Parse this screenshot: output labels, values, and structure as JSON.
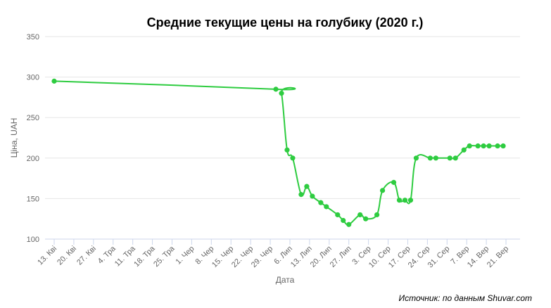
{
  "colors": {
    "series": "#2ecc40",
    "grid": "#e6e6e6",
    "text": "#666666"
  },
  "footer": {
    "source": "Источник: по данным Shuvar.com"
  },
  "chart_data": {
    "type": "line",
    "title": "Средние текущие цены на голубику (2020 г.)",
    "xlabel": "Дата",
    "ylabel": "Ціна, UAH",
    "ylim": [
      100,
      350
    ],
    "yticks": [
      100,
      150,
      200,
      250,
      300,
      350
    ],
    "grid": true,
    "legend": "none",
    "xlim": [
      "2020-04-13",
      "2020-09-24"
    ],
    "xtick_labels": [
      "13. Кві",
      "20. Кві",
      "27. Кві",
      "4. Тра",
      "11. Тра",
      "18. Тра",
      "25. Тра",
      "1. Чер",
      "8. Чер",
      "15. Чер",
      "22. Чер",
      "29. Чер",
      "6. Лип",
      "13. Лип",
      "20. Лип",
      "27. Лип",
      "3. Сер",
      "10. Сер",
      "17. Сер",
      "24. Сер",
      "31. Сер",
      "7. Вер",
      "14. Вер",
      "21. Вер"
    ],
    "series": [
      {
        "x": [
          "2020-04-13",
          "2020-07-01",
          "2020-07-03",
          "2020-07-05",
          "2020-07-07",
          "2020-07-10",
          "2020-07-12",
          "2020-07-14",
          "2020-07-17",
          "2020-07-19",
          "2020-07-23",
          "2020-07-25",
          "2020-07-27",
          "2020-07-31",
          "2020-08-02",
          "2020-08-06",
          "2020-08-08",
          "2020-08-12",
          "2020-08-14",
          "2020-08-16",
          "2020-08-18",
          "2020-08-20",
          "2020-08-25",
          "2020-08-27",
          "2020-09-01",
          "2020-09-03",
          "2020-09-06",
          "2020-09-08",
          "2020-09-11",
          "2020-09-13",
          "2020-09-15",
          "2020-09-18",
          "2020-09-20"
        ],
        "values": [
          295,
          285,
          280,
          210,
          200,
          155,
          165,
          153,
          145,
          140,
          130,
          123,
          118,
          130,
          125,
          130,
          160,
          170,
          148,
          148,
          148,
          200,
          200,
          200,
          200,
          200,
          210,
          215,
          215,
          215,
          215,
          215,
          215
        ]
      }
    ]
  }
}
